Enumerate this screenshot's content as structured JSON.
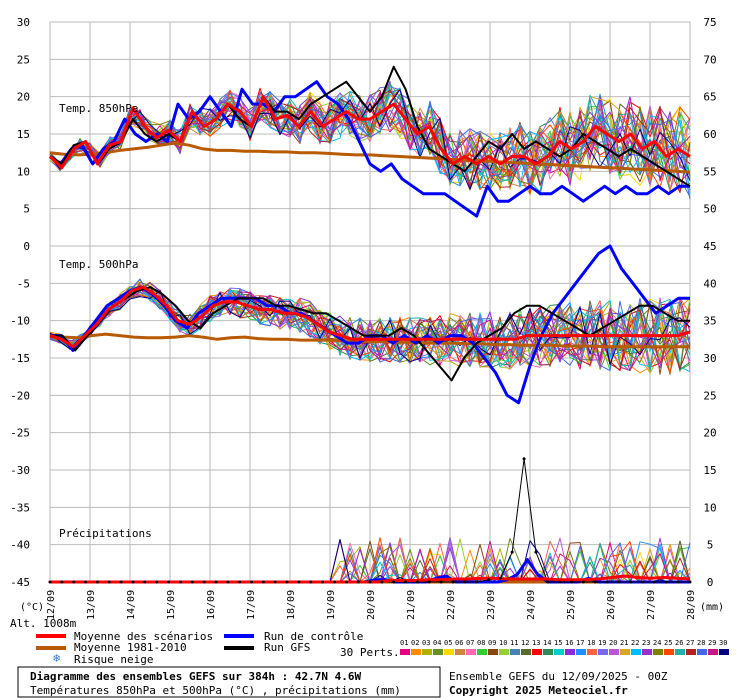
{
  "chart_data": {
    "type": "line",
    "title": "Diagramme des ensembles GEFS sur 384h : 42.7N 4.6W",
    "subtitle": "Températures 850hPa et 500hPa (°C) , précipitations (mm)",
    "x_tick_labels": [
      "12/09",
      "13/09",
      "14/09",
      "15/09",
      "16/09",
      "17/09",
      "18/09",
      "19/09",
      "20/09",
      "21/09",
      "22/09",
      "23/09",
      "24/09",
      "25/09",
      "26/09",
      "27/09",
      "28/09"
    ],
    "left_unit": "(°C)",
    "right_unit": "(mm)",
    "altitude_label": "Alt. 1008m",
    "left_ticks": [
      30,
      25,
      20,
      15,
      10,
      5,
      0,
      -5,
      -10,
      -15,
      -20,
      -25,
      -30,
      -35,
      -40,
      -45
    ],
    "right_ticks": [
      75,
      70,
      65,
      60,
      55,
      50,
      45,
      40,
      35,
      30,
      25,
      20,
      15,
      10,
      5,
      0
    ],
    "panel_labels": {
      "t850": "Temp. 850hPa",
      "t500": "Temp. 500hPa",
      "precip": "Précipitations"
    },
    "ylim_left": [
      -45,
      30
    ],
    "grid": true,
    "series": [
      {
        "name": "Moyenne des scénarios",
        "color": "#ff0000",
        "t850": [
          12,
          10.5,
          13,
          14,
          11,
          13.5,
          14,
          18.5,
          16,
          14.5,
          15.5,
          14,
          18,
          16,
          17,
          19,
          18,
          16,
          20,
          17,
          17.5,
          16,
          18,
          16,
          17,
          18,
          17,
          17,
          18,
          19,
          17,
          15,
          16,
          13,
          11,
          12,
          11,
          12,
          11,
          12,
          12,
          11,
          12,
          14,
          13,
          14,
          16,
          15,
          14,
          15,
          13,
          14,
          12,
          13,
          12
        ],
        "t500": [
          -12,
          -12.5,
          -13.5,
          -12,
          -10.5,
          -8.5,
          -7.5,
          -6,
          -5.5,
          -6.5,
          -8,
          -10,
          -10.5,
          -9.5,
          -8,
          -7.5,
          -7.5,
          -8,
          -8.5,
          -8.5,
          -9,
          -9,
          -9.5,
          -10.5,
          -11.5,
          -12,
          -12.5,
          -12.5,
          -12.5,
          -12.5,
          -12.5,
          -12.5,
          -12.5,
          -12.5,
          -12.5,
          -12.5,
          -12.5,
          -12.5,
          -12.5,
          -12.5,
          -12.5,
          -12,
          -12,
          -12,
          -12,
          -12,
          -12,
          -12,
          -12,
          -12,
          -12,
          -12,
          -12,
          -12,
          -12,
          -11.5
        ],
        "precip": [
          0,
          0,
          0,
          0,
          0,
          0,
          0,
          0,
          0,
          0,
          0,
          0,
          0,
          0,
          0,
          0,
          0,
          0,
          0,
          0,
          0,
          0,
          0,
          0,
          0,
          0,
          0.2,
          0.2,
          0.2,
          0.3,
          0.3,
          0.4,
          0.4,
          0.5,
          0.5,
          0.4,
          0.4,
          0.4,
          0.4,
          0.3,
          0.3,
          0.3,
          0.4,
          0.6,
          0.8,
          0.6,
          0.5,
          0.6,
          0.5,
          0.4
        ]
      },
      {
        "name": "Moyenne 1981-2010",
        "color": "#b85a00",
        "t850": [
          12.5,
          12.3,
          12.2,
          12.3,
          12.5,
          12.8,
          13,
          13.2,
          13.5,
          13.8,
          13.5,
          13,
          12.8,
          12.8,
          12.7,
          12.7,
          12.6,
          12.6,
          12.5,
          12.5,
          12.4,
          12.3,
          12.2,
          12.2,
          12.1,
          12,
          11.9,
          11.8,
          11.7,
          11.6,
          11.5,
          11.4,
          11.3,
          11.2,
          11.1,
          11,
          10.9,
          10.8,
          10.7,
          10.6,
          10.5,
          10.4,
          10.3,
          10.2,
          10.1,
          10,
          9.9
        ],
        "t500": [
          -12,
          -12.2,
          -12.3,
          -12,
          -11.8,
          -12,
          -12.2,
          -12.3,
          -12.3,
          -12.2,
          -12,
          -12.2,
          -12.5,
          -12.3,
          -12.2,
          -12.4,
          -12.5,
          -12.5,
          -12.6,
          -12.6,
          -12.6,
          -12.7,
          -12.7,
          -12.8,
          -12.8,
          -12.9,
          -12.9,
          -13,
          -13,
          -13,
          -13.1,
          -13.1,
          -13.2,
          -13.2,
          -13.3,
          -13.3,
          -13.3,
          -13.4,
          -13.4,
          -13.4,
          -13.5,
          -13.5,
          -13.5,
          -13.5,
          -13.5,
          -13.5,
          -13.5
        ],
        "precip": []
      },
      {
        "name": "Run de contrôle",
        "color": "#0000ff",
        "t850": [
          12,
          11,
          13,
          13.5,
          11,
          13,
          14,
          17,
          15,
          14,
          15,
          14,
          19,
          17,
          18,
          20,
          18,
          16,
          21,
          19,
          19,
          18,
          20,
          20,
          21,
          22,
          20,
          19,
          17,
          14,
          11,
          10,
          11,
          9,
          8,
          7,
          7,
          7,
          6,
          5,
          4,
          8,
          6,
          6,
          7,
          8,
          7,
          7,
          8,
          7,
          6,
          7,
          8,
          7,
          8,
          7,
          7,
          8,
          7,
          8,
          8
        ],
        "t500": [
          -12,
          -12,
          -14,
          -12,
          -10,
          -8,
          -7,
          -6,
          -5.5,
          -6.5,
          -8,
          -10,
          -11,
          -9,
          -8,
          -7,
          -7,
          -7,
          -7,
          -8,
          -8,
          -9,
          -9,
          -10,
          -11,
          -12,
          -13,
          -13,
          -12,
          -12,
          -13,
          -12,
          -13,
          -12,
          -13,
          -12,
          -12,
          -13,
          -15,
          -17,
          -20,
          -21,
          -16,
          -12,
          -9,
          -7,
          -5,
          -3,
          -1,
          0,
          -3,
          -5,
          -7,
          -9,
          -8,
          -7,
          -7
        ],
        "precip": [
          0,
          0,
          0,
          0,
          0,
          0,
          0,
          0,
          0,
          0,
          0,
          0,
          0,
          0,
          0,
          0,
          0,
          0,
          0,
          0,
          0,
          0,
          0,
          0,
          0,
          0,
          0,
          0,
          0,
          0,
          0,
          0,
          0.3,
          0.3,
          0,
          0,
          0,
          0,
          0.5,
          0.8,
          0,
          0,
          0,
          0,
          0,
          0.3,
          1,
          3,
          1,
          0,
          0,
          0,
          0,
          0.5,
          0,
          0,
          0,
          0,
          0,
          0,
          0,
          0,
          0,
          0
        ]
      },
      {
        "name": "Run GFS",
        "color": "#000000",
        "t850": [
          12,
          11,
          13.5,
          14,
          11,
          13,
          14,
          17,
          15,
          14,
          15,
          14,
          18,
          16,
          17,
          19,
          17,
          16,
          20,
          18,
          18,
          17,
          19,
          20,
          21,
          22,
          20,
          18,
          20,
          24,
          21,
          16,
          13,
          12,
          11,
          10,
          12,
          14,
          13,
          15,
          13,
          14,
          13,
          12,
          13,
          15,
          14,
          13,
          12,
          13,
          12,
          11,
          10,
          9,
          8
        ],
        "t500": [
          -12,
          -12,
          -14,
          -12,
          -10,
          -8,
          -7,
          -6,
          -5.5,
          -6.5,
          -8,
          -10,
          -11,
          -9,
          -8,
          -7,
          -7,
          -7,
          -8,
          -8,
          -8.5,
          -9,
          -9,
          -10,
          -11,
          -12,
          -12,
          -12,
          -11,
          -12,
          -14,
          -16,
          -18,
          -15,
          -13,
          -12,
          -11,
          -9,
          -8,
          -8,
          -9,
          -10,
          -11,
          -12,
          -11,
          -10,
          -9,
          -8,
          -8,
          -9,
          -10,
          -10
        ],
        "precip": [
          0,
          0,
          0,
          0,
          0,
          0,
          0,
          0,
          0,
          0,
          0,
          0,
          0,
          0,
          0,
          0,
          0,
          0,
          0,
          0,
          0,
          0,
          0,
          0,
          0,
          0,
          0,
          0,
          0,
          0,
          0,
          0,
          0,
          0,
          0,
          0,
          0,
          0.3,
          0.5,
          4,
          16.5,
          4,
          0,
          0,
          0,
          0,
          0,
          0,
          0,
          0,
          0,
          0,
          0,
          0,
          0
        ]
      }
    ],
    "legend": {
      "mean_label": "Moyenne des scénarios",
      "clim_label": "Moyenne 1981-2010",
      "snow_label": "Risque neige",
      "control_label": "Run de contrôle",
      "gfs_label": "Run GFS",
      "perts_label": "30 Perts.",
      "pert_ids": [
        "01",
        "02",
        "03",
        "04",
        "05",
        "06",
        "07",
        "08",
        "09",
        "10",
        "11",
        "12",
        "13",
        "14",
        "15",
        "16",
        "17",
        "18",
        "19",
        "20",
        "21",
        "22",
        "23",
        "24",
        "25",
        "26",
        "27",
        "28",
        "29",
        "30"
      ],
      "pert_colors": [
        "#e6007e",
        "#ff8c00",
        "#b0b000",
        "#6b8e23",
        "#ffd700",
        "#cd853f",
        "#ff69b4",
        "#32cd32",
        "#8b4513",
        "#9acd32",
        "#4682b4",
        "#556b2f",
        "#ff0000",
        "#2e8b57",
        "#00ced1",
        "#8a2be2",
        "#1e90ff",
        "#ff6347",
        "#7b68ee",
        "#ba55d3",
        "#daa520",
        "#00bfff",
        "#9932cc",
        "#808000",
        "#ff4500",
        "#20b2aa",
        "#b22222",
        "#4169e1",
        "#c71585",
        "#000080"
      ]
    },
    "footer": {
      "ensemble_line": "Ensemble GEFS du 12/09/2025 - 00Z",
      "copyright": "Copyright 2025 Meteociel.fr"
    }
  }
}
